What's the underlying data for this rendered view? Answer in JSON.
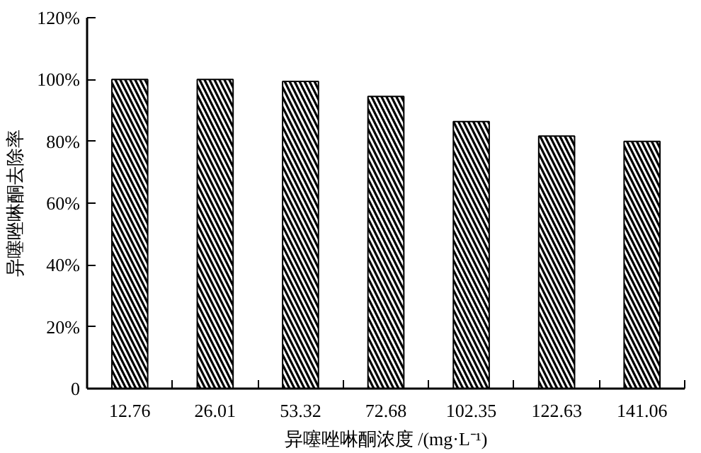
{
  "chart_data": {
    "type": "bar",
    "xlabel": "异噻唑啉酮浓度 /(mg·L⁻¹)",
    "ylabel": "异噻唑啉酮去除率",
    "categories": [
      "12.76",
      "26.01",
      "53.32",
      "72.68",
      "102.35",
      "122.63",
      "141.06"
    ],
    "values": [
      100,
      100,
      99.4,
      94.5,
      86.4,
      81.7,
      80
    ],
    "color": "#000000",
    "ylim": [
      0,
      120
    ],
    "yticks": [
      0,
      {
        "value": 20,
        "label": "20%"
      },
      {
        "value": 40,
        "label": "40%"
      },
      {
        "value": 60,
        "label": "60%"
      },
      {
        "value": 80,
        "label": "80%"
      },
      {
        "value": 100,
        "label": "100%"
      },
      {
        "value": 120,
        "label": "120%"
      }
    ],
    "grid": false
  }
}
